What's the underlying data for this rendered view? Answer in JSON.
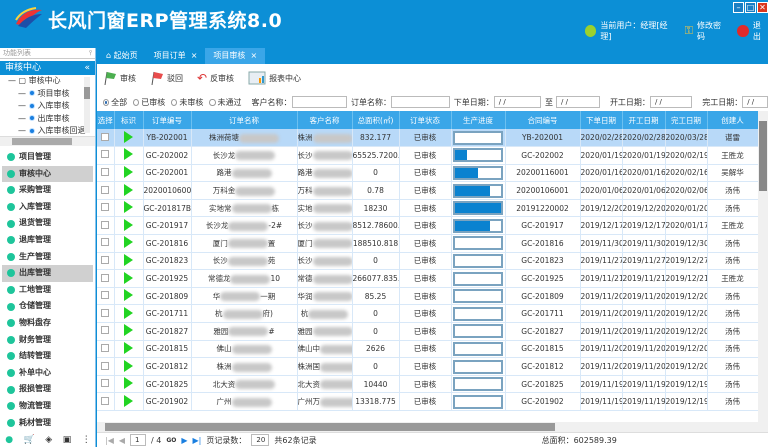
{
  "app": {
    "title": "长风门窗ERP管理系统8.0",
    "user_label": "当前用户：经理[经理]",
    "change_password": "修改密码",
    "logout": "退出"
  },
  "sidebar": {
    "search_placeholder": "功能列表",
    "panel_title": "审核中心",
    "tree": [
      {
        "label": "审核中心",
        "root": true
      },
      {
        "label": "项目审核"
      },
      {
        "label": "入库审核"
      },
      {
        "label": "出库审核"
      },
      {
        "label": "入库审核回退"
      }
    ],
    "menu": [
      {
        "label": "项目管理"
      },
      {
        "label": "审核中心",
        "active": true
      },
      {
        "label": "采购管理"
      },
      {
        "label": "入库管理"
      },
      {
        "label": "退货管理"
      },
      {
        "label": "退库管理"
      },
      {
        "label": "生产管理"
      },
      {
        "label": "出库管理",
        "active": true
      },
      {
        "label": "工地管理"
      },
      {
        "label": "仓储管理"
      },
      {
        "label": "物料盘存"
      },
      {
        "label": "财务管理"
      },
      {
        "label": "结转管理"
      },
      {
        "label": "补单中心"
      },
      {
        "label": "报损管理"
      },
      {
        "label": "物流管理"
      },
      {
        "label": "耗材管理"
      }
    ]
  },
  "tabs": [
    {
      "label": "起始页",
      "icon": "home-icon"
    },
    {
      "label": "项目订单",
      "closable": true
    },
    {
      "label": "项目审核",
      "closable": true,
      "active": true
    }
  ],
  "toolbar": {
    "approve": "审核",
    "reject": "驳回",
    "unapprove": "反审核",
    "report": "报表中心"
  },
  "filters": {
    "all": "全部",
    "approved": "已审核",
    "unapproved": "未审核",
    "failed": "未通过",
    "selected": "全部",
    "customer_label": "客户名称：",
    "order_label": "订单名称：",
    "order_date_label": "下单日期：",
    "to_label": "至",
    "start_date_label": "开工日期：",
    "finish_date_label": "完工日期：",
    "date_placeholder": "/ /"
  },
  "grid": {
    "columns": [
      "选择",
      "标识",
      "订单编号",
      "订单名称",
      "客户名称",
      "总面积(㎡)",
      "订单状态",
      "生产进度",
      "合同编号",
      "下单日期",
      "开工日期",
      "完工日期",
      "创建人"
    ],
    "rows": [
      {
        "no": "YB-202001",
        "name": [
          "株洲荷塘",
          ""
        ],
        "client": [
          "株洲",
          ""
        ],
        "area": "832.177",
        "status": "已审核",
        "progress": 0,
        "contract": "YB-202001",
        "d1": "2020/02/28",
        "d2": "2020/02/28",
        "d3": "2020/03/28",
        "creator": "谌雷"
      },
      {
        "no": "GC-202002",
        "name": [
          "长沙龙",
          ""
        ],
        "client": [
          "长沙",
          "殿..."
        ],
        "area": "65525.7200...",
        "status": "已审核",
        "progress": 25,
        "contract": "GC-202002",
        "d1": "2020/01/19",
        "d2": "2020/01/19",
        "d3": "2020/02/19",
        "creator": "王胜龙"
      },
      {
        "no": "GC-202001",
        "name": [
          "路港",
          ""
        ],
        "client": [
          "路港",
          "墙"
        ],
        "area": "0",
        "status": "已审核",
        "progress": 50,
        "contract": "20200116001",
        "d1": "2020/01/16",
        "d2": "2020/01/16",
        "d3": "2020/02/16",
        "creator": "吴解华"
      },
      {
        "no": "20200106001",
        "name": [
          "万科金",
          ""
        ],
        "client": [
          "万科",
          "一期"
        ],
        "area": "0.78",
        "status": "已审核",
        "progress": 75,
        "contract": "20200106001",
        "d1": "2020/01/06",
        "d2": "2020/01/06",
        "d3": "2020/02/06",
        "creator": "汤伟"
      },
      {
        "no": "GC-201817B",
        "name": [
          "实地常",
          "栋"
        ],
        "client": [
          "实地",
          "#..."
        ],
        "area": "18230",
        "status": "已审核",
        "progress": 100,
        "contract": "20191220002",
        "d1": "2019/12/20",
        "d2": "2019/12/20",
        "d3": "2020/01/20",
        "creator": "汤伟"
      },
      {
        "no": "GC-201917",
        "name": [
          "长沙龙",
          "-2#"
        ],
        "client": [
          "长沙",
          "天..."
        ],
        "area": "8512.78600...",
        "status": "已审核",
        "progress": 75,
        "contract": "GC-201917",
        "d1": "2019/12/17",
        "d2": "2019/12/17",
        "d3": "2020/01/17",
        "creator": "王胜龙"
      },
      {
        "no": "GC-201816",
        "name": [
          "厦门",
          "置"
        ],
        "client": [
          "厦门",
          "置"
        ],
        "area": "188510.818",
        "status": "已审核",
        "progress": 0,
        "contract": "GC-201816",
        "d1": "2019/11/30",
        "d2": "2019/11/30",
        "d3": "2019/12/30",
        "creator": "汤伟"
      },
      {
        "no": "GC-201823",
        "name": [
          "长沙",
          "苑"
        ],
        "client": [
          "长沙",
          "之..."
        ],
        "area": "0",
        "status": "已审核",
        "progress": 0,
        "contract": "GC-201823",
        "d1": "2019/11/27",
        "d2": "2019/11/27",
        "d3": "2019/12/27",
        "creator": "汤伟"
      },
      {
        "no": "GC-201925",
        "name": [
          "常德龙",
          "10"
        ],
        "client": [
          "常德",
          "府..."
        ],
        "area": "266077.835...",
        "status": "已审核",
        "progress": 0,
        "contract": "GC-201925",
        "d1": "2019/11/21",
        "d2": "2019/11/21",
        "d3": "2019/12/21",
        "creator": "王胜龙"
      },
      {
        "no": "GC-201809",
        "name": [
          "华",
          "一期"
        ],
        "client": [
          "华润",
          "期"
        ],
        "area": "85.25",
        "status": "已审核",
        "progress": 0,
        "contract": "GC-201809",
        "d1": "2019/11/20",
        "d2": "2019/11/20",
        "d3": "2019/12/20",
        "creator": "汤伟"
      },
      {
        "no": "GC-201711",
        "name": [
          "杭",
          "府)"
        ],
        "client": [
          "杭",
          ""
        ],
        "area": "0",
        "status": "已审核",
        "progress": 0,
        "contract": "GC-201711",
        "d1": "2019/11/20",
        "d2": "2019/11/20",
        "d3": "2019/12/20",
        "creator": "汤伟"
      },
      {
        "no": "GC-201827",
        "name": [
          "雅园",
          "#"
        ],
        "client": [
          "雅园",
          "2#"
        ],
        "area": "0",
        "status": "已审核",
        "progress": 0,
        "contract": "GC-201827",
        "d1": "2019/11/20",
        "d2": "2019/11/20",
        "d3": "2019/12/20",
        "creator": "汤伟"
      },
      {
        "no": "GC-201815",
        "name": [
          "佛山",
          ""
        ],
        "client": [
          "佛山中",
          "花园"
        ],
        "area": "2626",
        "status": "已审核",
        "progress": 0,
        "contract": "GC-201815",
        "d1": "2019/11/20",
        "d2": "2019/11/20",
        "d3": "2019/12/20",
        "creator": "汤伟"
      },
      {
        "no": "GC-201812",
        "name": [
          "株洲",
          ""
        ],
        "client": [
          "株洲国",
          "未来"
        ],
        "area": "0",
        "status": "已审核",
        "progress": 0,
        "contract": "GC-201812",
        "d1": "2019/11/20",
        "d2": "2019/11/20",
        "d3": "2019/12/20",
        "creator": "汤伟"
      },
      {
        "no": "GC-201825",
        "name": [
          "北大资",
          ""
        ],
        "client": [
          "北大资",
          "天..."
        ],
        "area": "10440",
        "status": "已审核",
        "progress": 0,
        "contract": "GC-201825",
        "d1": "2019/11/19",
        "d2": "2019/11/19",
        "d3": "2019/12/19",
        "creator": "汤伟"
      },
      {
        "no": "GC-201902",
        "name": [
          "广州",
          ""
        ],
        "client": [
          "广州万",
          "森林"
        ],
        "area": "13318.775",
        "status": "已审核",
        "progress": 0,
        "contract": "GC-201902",
        "d1": "2019/11/19",
        "d2": "2019/11/19",
        "d3": "2019/12/19",
        "creator": "汤伟"
      }
    ]
  },
  "pager": {
    "page": "1",
    "total_pages": "/ 4",
    "go": "GO",
    "page_size_label": "页记录数：",
    "page_size": "20",
    "total_records": "共62条记录",
    "total_area": "总面积：602589.39"
  },
  "colors": {
    "brand": "#0c8fd6",
    "header": "#3aa6e8",
    "progress": "#0a82d0",
    "selected_row": "#b8d9f8"
  }
}
